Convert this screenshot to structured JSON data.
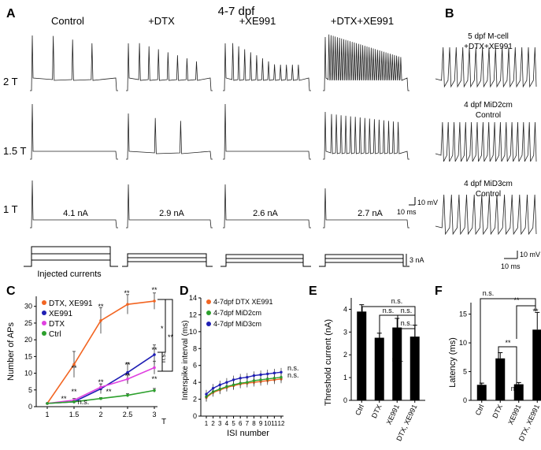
{
  "figure": {
    "main_title": "4-7 dpf",
    "panels": {
      "A": "A",
      "B": "B",
      "C": "C",
      "D": "D",
      "E": "E",
      "F": "F"
    }
  },
  "panel_a": {
    "columns": [
      "Control",
      "+DTX",
      "+XE991",
      "+DTX+XE991"
    ],
    "rows": [
      "2 T",
      "1.5 T",
      "1 T"
    ],
    "currents": [
      "4.1 nA",
      "2.9 nA",
      "2.6 nA",
      "2.7 nA"
    ],
    "injected_label": "Injected currents",
    "scale_mv": "10 mV",
    "scale_ms": "10 ms",
    "scale_na": "3 nA"
  },
  "panel_b": {
    "cells": [
      {
        "line1": "5 dpf M-cell",
        "line2": "+DTX+XE991"
      },
      {
        "line1": "4 dpf MiD2cm",
        "line2": "Control"
      },
      {
        "line1": "4 dpf MiD3cm",
        "line2": "Control"
      }
    ],
    "scale_mv": "10 mV",
    "scale_ms": "10 ms"
  },
  "chart_data": [
    {
      "id": "C",
      "type": "line",
      "ylabel": "Number of APs",
      "x_ticks": [
        "1",
        "1.5",
        "2",
        "2.5",
        "3"
      ],
      "x_unit": "T",
      "y_ticks": [
        "0",
        "5",
        "10",
        "15",
        "20",
        "25",
        "30"
      ],
      "ylim": [
        0,
        33
      ],
      "x": [
        1,
        1.5,
        2,
        2.5,
        3
      ],
      "series": [
        {
          "name": "DTX, XE991",
          "color": "#f26522",
          "values": [
            1,
            13,
            26.5,
            31.5,
            32.5
          ],
          "err": [
            0,
            4,
            4,
            3,
            2.5
          ]
        },
        {
          "name": "XE991",
          "color": "#1f1fb4",
          "values": [
            1,
            1.5,
            5.5,
            10.5,
            16
          ],
          "err": [
            0,
            0.5,
            1.5,
            3,
            3
          ]
        },
        {
          "name": "DTX",
          "color": "#e040e0",
          "values": [
            1,
            2,
            6,
            8.5,
            12
          ],
          "err": [
            0,
            0.5,
            1,
            1.5,
            2
          ]
        },
        {
          "name": "Ctrl",
          "color": "#2ca02c",
          "values": [
            1,
            1.5,
            2.5,
            3.5,
            5
          ],
          "err": [
            0,
            0.2,
            0.3,
            0.5,
            0.6
          ]
        }
      ],
      "annotations": [
        "**",
        "**",
        "**",
        "**",
        "**",
        "**",
        "**",
        "**",
        "**",
        "**",
        "**",
        "**",
        "n.s.",
        "*",
        "**",
        "n.s."
      ],
      "legend": "top-left"
    },
    {
      "id": "D",
      "type": "line",
      "ylabel": "Interspike interval (ms)",
      "xlabel": "ISI number",
      "x_ticks": [
        "1",
        "2",
        "3",
        "4",
        "5",
        "6",
        "7",
        "8",
        "9",
        "10",
        "11",
        "12"
      ],
      "y_ticks": [
        "0",
        "2",
        "4",
        "6",
        "8",
        "10",
        "12",
        "14"
      ],
      "ylim": [
        0,
        14
      ],
      "x": [
        1,
        2,
        3,
        4,
        5,
        6,
        7,
        8,
        9,
        10,
        11,
        12
      ],
      "series": [
        {
          "name": "4-7dpf DTX XE991",
          "color": "#f26522",
          "values": [
            2.2,
            2.8,
            3.1,
            3.4,
            3.6,
            3.8,
            3.9,
            4.0,
            4.1,
            4.2,
            4.3,
            4.4
          ]
        },
        {
          "name": "4-7dpf MiD2cm",
          "color": "#2ca02c",
          "values": [
            2.3,
            2.9,
            3.2,
            3.5,
            3.7,
            3.9,
            4.0,
            4.2,
            4.3,
            4.4,
            4.5,
            4.6
          ]
        },
        {
          "name": "4-7dpf MiD3cm",
          "color": "#1f1fb4",
          "values": [
            2.6,
            3.3,
            3.7,
            4.0,
            4.3,
            4.5,
            4.6,
            4.8,
            4.9,
            5.0,
            5.1,
            5.2
          ]
        }
      ],
      "annotations": [
        "n.s.",
        "n.s."
      ],
      "legend": "top"
    },
    {
      "id": "E",
      "type": "bar",
      "ylabel": "Threshold current (nA)",
      "categories": [
        "Ctrl",
        "DTX",
        "XE991",
        "DTX, XE991"
      ],
      "values": [
        3.9,
        2.75,
        3.2,
        2.8
      ],
      "err": [
        0.3,
        0.2,
        0.4,
        0.5
      ],
      "y_ticks": [
        "0",
        "1",
        "2",
        "3",
        "4"
      ],
      "ylim": [
        0,
        4.5
      ],
      "annotations": [
        "**",
        "n.s.",
        "*",
        "n.s.",
        "n.s.",
        "n.s.",
        "n.s."
      ]
    },
    {
      "id": "F",
      "type": "bar",
      "ylabel": "Latency (ms)",
      "categories": [
        "Ctrl",
        "DTX",
        "XE991",
        "DTX, XE991"
      ],
      "values": [
        2.7,
        7.3,
        2.8,
        12.3
      ],
      "err": [
        0.3,
        1.0,
        0.3,
        3.0
      ],
      "y_ticks": [
        "0",
        "5",
        "10",
        "15"
      ],
      "ylim": [
        0,
        17
      ],
      "annotations": [
        "**",
        "n.s.",
        "**",
        "**",
        "n.s.",
        "**"
      ]
    }
  ]
}
